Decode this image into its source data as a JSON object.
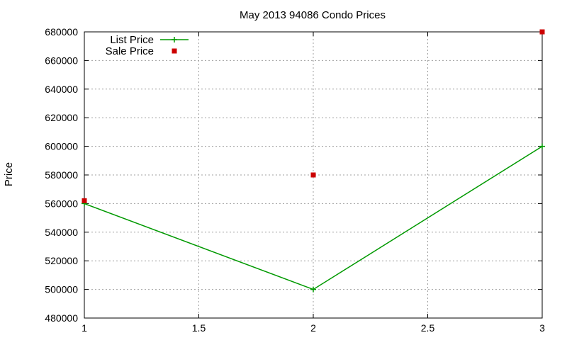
{
  "chart_data": {
    "type": "line",
    "title": "May 2013 94086 Condo Prices",
    "xlabel": "",
    "ylabel": "Price",
    "xlim": [
      1,
      3
    ],
    "ylim": [
      480000,
      680000
    ],
    "x_ticks": [
      1,
      1.5,
      2,
      2.5,
      3
    ],
    "y_ticks": [
      480000,
      500000,
      520000,
      540000,
      560000,
      580000,
      600000,
      620000,
      640000,
      660000,
      680000
    ],
    "grid": true,
    "legend_position": "top-left",
    "series": [
      {
        "name": "List Price",
        "style": "lines+points",
        "marker": "plus",
        "color": "#009900",
        "x": [
          1,
          2,
          3
        ],
        "y": [
          560000,
          500000,
          600000
        ]
      },
      {
        "name": "Sale Price",
        "style": "points",
        "marker": "square",
        "color": "#cc0000",
        "x": [
          1,
          2,
          3
        ],
        "y": [
          562000,
          580000,
          680000
        ]
      }
    ]
  }
}
